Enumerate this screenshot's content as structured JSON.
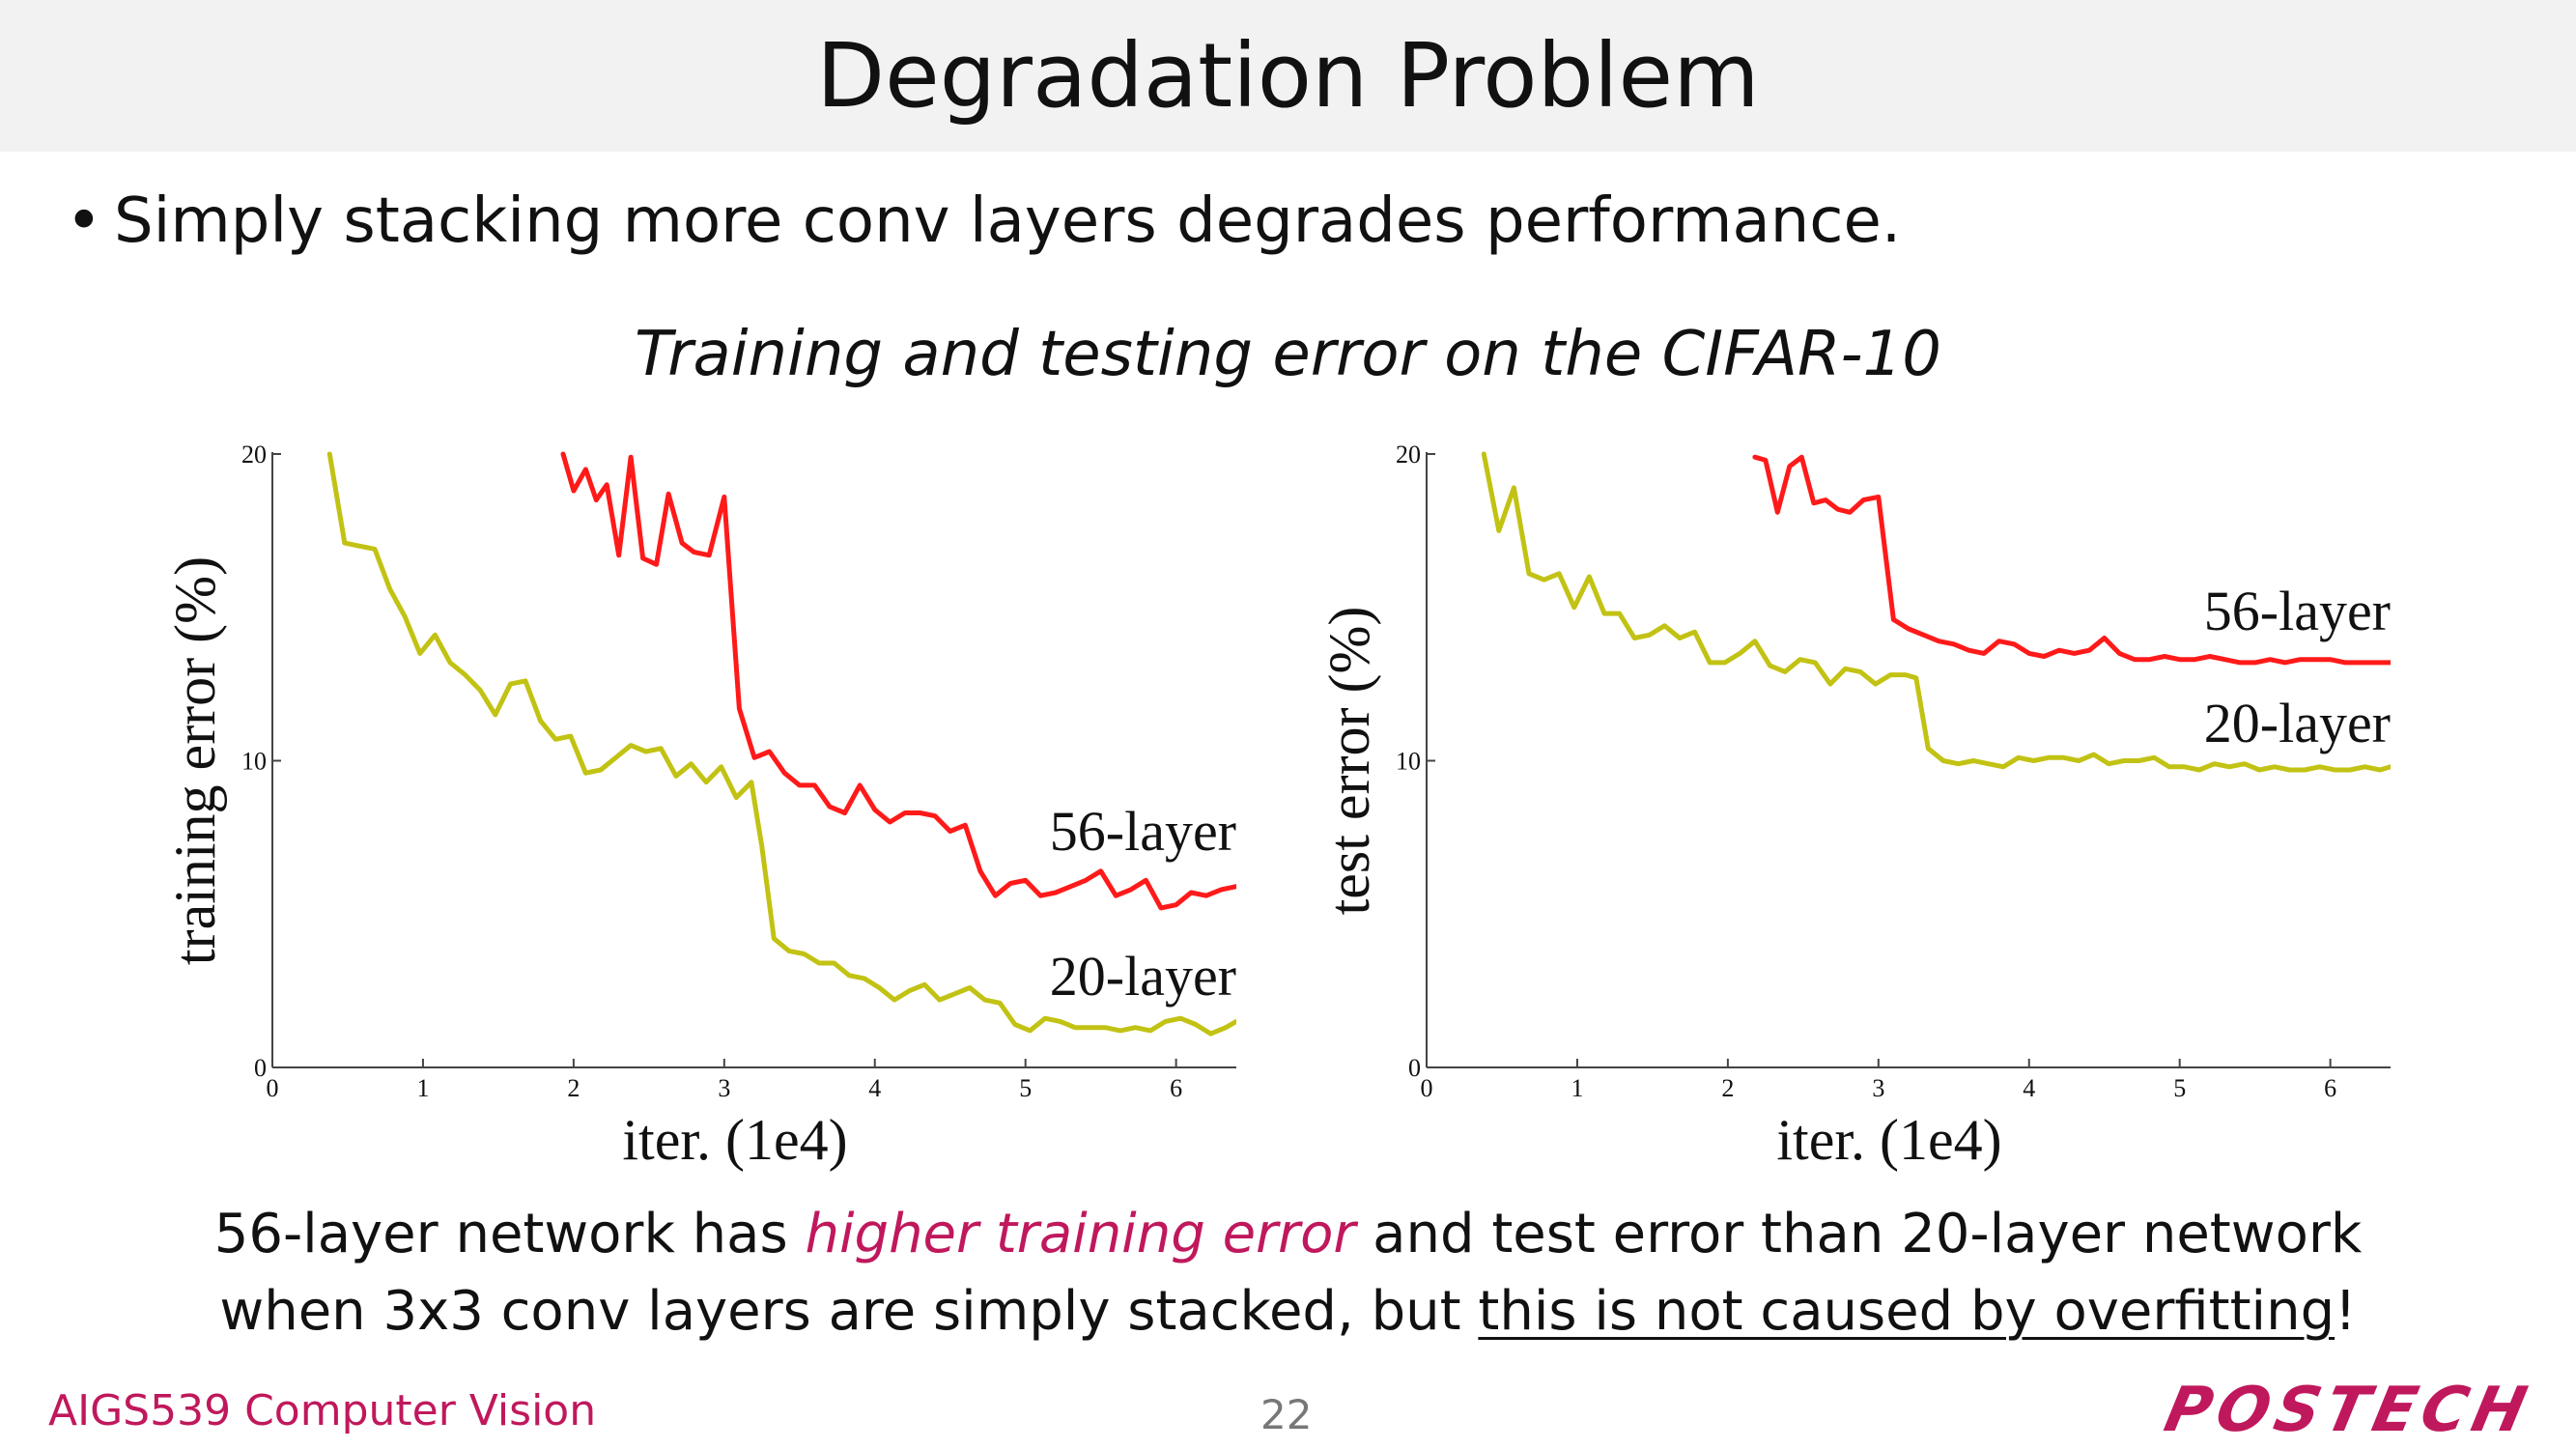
{
  "slide": {
    "title": "Degradation Problem",
    "bullet": "Simply stacking more conv layers degrades performance.",
    "bullet_symbol": "•",
    "subtitle": "Training and testing error on the CIFAR-10",
    "caption": {
      "line1_a": "56-layer network has ",
      "line1_highlight": "higher training error",
      "line1_b": " and test error than 20-layer network",
      "line2_a": "when 3x3 conv layers are simply stacked, but ",
      "line2_underline": "this is not caused by overfitting",
      "line2_b": "!"
    },
    "footer": {
      "course": "AIGS539 Computer Vision",
      "page_number": "22",
      "logo_text": "POSTECH"
    }
  },
  "colors": {
    "56-layer": "#ff1a1a",
    "20-layer": "#c2c214",
    "accent": "#c0185c",
    "title_bar": "#f2f2f2"
  },
  "chart_data": [
    {
      "type": "line",
      "xlabel": "iter. (1e4)",
      "ylabel": "training error (%)",
      "xlim": [
        0,
        6.4
      ],
      "ylim": [
        0,
        20
      ],
      "xticks": [
        "0",
        "1",
        "2",
        "3",
        "4",
        "5",
        "6"
      ],
      "yticks": [
        "0",
        "10",
        "20"
      ],
      "grid": false,
      "series": [
        {
          "name": "56-layer",
          "color": "#ff1a1a",
          "x": [
            1.93,
            2.0,
            2.08,
            2.15,
            2.22,
            2.3,
            2.38,
            2.46,
            2.55,
            2.63,
            2.72,
            2.8,
            2.9,
            3.0,
            3.1,
            3.2,
            3.3,
            3.4,
            3.5,
            3.6,
            3.7,
            3.8,
            3.9,
            4.0,
            4.1,
            4.2,
            4.3,
            4.4,
            4.5,
            4.6,
            4.7,
            4.8,
            4.9,
            5.0,
            5.1,
            5.2,
            5.3,
            5.4,
            5.5,
            5.6,
            5.7,
            5.8,
            5.9,
            6.0,
            6.1,
            6.2,
            6.3,
            6.4
          ],
          "values": [
            20.0,
            18.8,
            19.5,
            18.5,
            19.0,
            16.7,
            19.9,
            16.6,
            16.4,
            18.7,
            17.1,
            16.8,
            16.7,
            18.6,
            11.7,
            10.1,
            10.3,
            9.6,
            9.2,
            9.2,
            8.5,
            8.3,
            9.2,
            8.4,
            8.0,
            8.3,
            8.3,
            8.2,
            7.7,
            7.9,
            6.4,
            5.6,
            6.0,
            6.1,
            5.6,
            5.7,
            5.9,
            6.1,
            6.4,
            5.6,
            5.8,
            6.1,
            5.2,
            5.3,
            5.7,
            5.6,
            5.8,
            5.9
          ]
        },
        {
          "name": "20-layer",
          "color": "#c2c214",
          "x": [
            0.38,
            0.48,
            0.58,
            0.68,
            0.78,
            0.88,
            0.98,
            1.08,
            1.18,
            1.28,
            1.38,
            1.48,
            1.58,
            1.68,
            1.78,
            1.88,
            1.98,
            2.08,
            2.18,
            2.28,
            2.38,
            2.48,
            2.58,
            2.68,
            2.78,
            2.88,
            2.98,
            3.08,
            3.18,
            3.25,
            3.33,
            3.43,
            3.53,
            3.63,
            3.73,
            3.83,
            3.93,
            4.03,
            4.13,
            4.23,
            4.33,
            4.43,
            4.53,
            4.63,
            4.73,
            4.83,
            4.93,
            5.03,
            5.13,
            5.23,
            5.33,
            5.43,
            5.53,
            5.63,
            5.73,
            5.83,
            5.93,
            6.03,
            6.13,
            6.23,
            6.33,
            6.4
          ],
          "values": [
            20.0,
            17.1,
            17.0,
            16.9,
            15.6,
            14.7,
            13.5,
            14.1,
            13.2,
            12.8,
            12.3,
            11.5,
            12.5,
            12.6,
            11.3,
            10.7,
            10.8,
            9.6,
            9.7,
            10.1,
            10.5,
            10.3,
            10.4,
            9.5,
            9.9,
            9.3,
            9.8,
            8.8,
            9.3,
            7.2,
            4.2,
            3.8,
            3.7,
            3.4,
            3.4,
            3.0,
            2.9,
            2.6,
            2.2,
            2.5,
            2.7,
            2.2,
            2.4,
            2.6,
            2.2,
            2.1,
            1.4,
            1.2,
            1.6,
            1.5,
            1.3,
            1.3,
            1.3,
            1.2,
            1.3,
            1.2,
            1.5,
            1.6,
            1.4,
            1.1,
            1.3,
            1.5
          ]
        }
      ]
    },
    {
      "type": "line",
      "xlabel": "iter. (1e4)",
      "ylabel": "test error (%)",
      "xlim": [
        0,
        6.4
      ],
      "ylim": [
        0,
        20
      ],
      "xticks": [
        "0",
        "1",
        "2",
        "3",
        "4",
        "5",
        "6"
      ],
      "yticks": [
        "0",
        "10",
        "20"
      ],
      "grid": false,
      "series": [
        {
          "name": "56-layer",
          "color": "#ff1a1a",
          "x": [
            2.18,
            2.25,
            2.33,
            2.41,
            2.49,
            2.57,
            2.65,
            2.73,
            2.81,
            2.9,
            3.0,
            3.1,
            3.2,
            3.3,
            3.4,
            3.5,
            3.6,
            3.7,
            3.8,
            3.9,
            4.0,
            4.1,
            4.2,
            4.3,
            4.4,
            4.5,
            4.6,
            4.7,
            4.8,
            4.9,
            5.0,
            5.1,
            5.2,
            5.3,
            5.4,
            5.5,
            5.6,
            5.7,
            5.8,
            5.9,
            6.0,
            6.1,
            6.2,
            6.3,
            6.4
          ],
          "values": [
            19.9,
            19.8,
            18.1,
            19.6,
            19.9,
            18.4,
            18.5,
            18.2,
            18.1,
            18.5,
            18.6,
            14.6,
            14.3,
            14.1,
            13.9,
            13.8,
            13.6,
            13.5,
            13.9,
            13.8,
            13.5,
            13.4,
            13.6,
            13.5,
            13.6,
            14.0,
            13.5,
            13.3,
            13.3,
            13.4,
            13.3,
            13.3,
            13.4,
            13.3,
            13.2,
            13.2,
            13.3,
            13.2,
            13.3,
            13.3,
            13.3,
            13.2,
            13.2,
            13.2,
            13.2
          ]
        },
        {
          "name": "20-layer",
          "color": "#c2c214",
          "x": [
            0.38,
            0.48,
            0.58,
            0.68,
            0.78,
            0.88,
            0.98,
            1.08,
            1.18,
            1.28,
            1.38,
            1.48,
            1.58,
            1.68,
            1.78,
            1.88,
            1.98,
            2.08,
            2.18,
            2.28,
            2.38,
            2.48,
            2.58,
            2.68,
            2.78,
            2.88,
            2.98,
            3.08,
            3.18,
            3.25,
            3.33,
            3.43,
            3.53,
            3.63,
            3.73,
            3.83,
            3.93,
            4.03,
            4.13,
            4.23,
            4.33,
            4.43,
            4.53,
            4.63,
            4.73,
            4.83,
            4.93,
            5.03,
            5.13,
            5.23,
            5.33,
            5.43,
            5.53,
            5.63,
            5.73,
            5.83,
            5.93,
            6.03,
            6.13,
            6.23,
            6.33,
            6.4
          ],
          "values": [
            20.0,
            17.5,
            18.9,
            16.1,
            15.9,
            16.1,
            15.0,
            16.0,
            14.8,
            14.8,
            14.0,
            14.1,
            14.4,
            14.0,
            14.2,
            13.2,
            13.2,
            13.5,
            13.9,
            13.1,
            12.9,
            13.3,
            13.2,
            12.5,
            13.0,
            12.9,
            12.5,
            12.8,
            12.8,
            12.7,
            10.4,
            10.0,
            9.9,
            10.0,
            9.9,
            9.8,
            10.1,
            10.0,
            10.1,
            10.1,
            10.0,
            10.2,
            9.9,
            10.0,
            10.0,
            10.1,
            9.8,
            9.8,
            9.7,
            9.9,
            9.8,
            9.9,
            9.7,
            9.8,
            9.7,
            9.7,
            9.8,
            9.7,
            9.7,
            9.8,
            9.7,
            9.8
          ]
        }
      ]
    }
  ]
}
